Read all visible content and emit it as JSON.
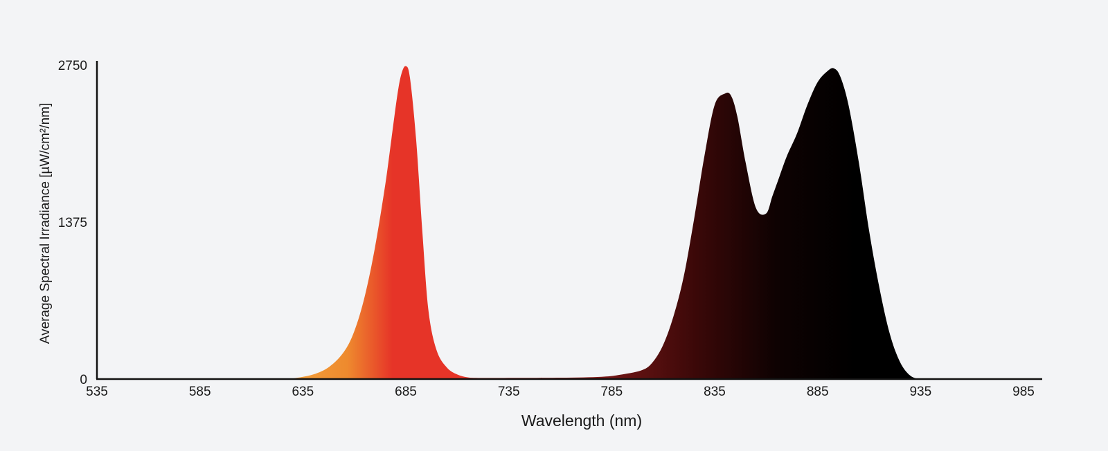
{
  "chart_data": {
    "type": "area",
    "title": "",
    "xlabel": "Wavelength  (nm)",
    "ylabel": "Average Spectral Irradiance [µW/cm²/nm]",
    "xlim": [
      535,
      1000
    ],
    "ylim": [
      0,
      2750
    ],
    "x_ticks": [
      "535",
      "585",
      "635",
      "685",
      "735",
      "785",
      "835",
      "885",
      "935",
      "985"
    ],
    "y_ticks": [
      "0",
      "1375",
      "2750"
    ],
    "grid": false,
    "legend": "none",
    "colors": {
      "background": "#f3f4f6",
      "axis": "#111111",
      "orange": "#ee8a2e",
      "red": "#e63428",
      "dark_red": "#6b1414",
      "black": "#000000"
    },
    "series": [
      {
        "x": [
          535,
          625,
          630,
          640,
          648,
          655,
          660,
          665,
          670,
          675,
          678,
          681,
          683,
          685,
          687,
          690,
          693,
          696,
          700,
          705,
          710,
          715,
          720,
          730,
          760,
          780,
          790,
          800,
          805,
          810,
          815,
          820,
          825,
          830,
          835,
          840,
          843,
          846,
          850,
          855,
          860,
          863,
          866,
          870,
          875,
          880,
          885,
          890,
          893,
          896,
          900,
          905,
          910,
          915,
          920,
          925,
          930,
          935,
          940,
          1000
        ],
        "values": [
          0,
          0,
          5,
          40,
          110,
          240,
          420,
          720,
          1150,
          1700,
          2100,
          2500,
          2680,
          2740,
          2640,
          2100,
          1300,
          600,
          250,
          100,
          40,
          15,
          10,
          10,
          12,
          20,
          40,
          80,
          150,
          300,
          550,
          900,
          1400,
          1950,
          2400,
          2500,
          2480,
          2300,
          1900,
          1500,
          1450,
          1600,
          1750,
          1950,
          2150,
          2400,
          2600,
          2700,
          2720,
          2650,
          2400,
          1900,
          1300,
          800,
          400,
          150,
          30,
          0,
          0,
          0
        ]
      }
    ]
  }
}
